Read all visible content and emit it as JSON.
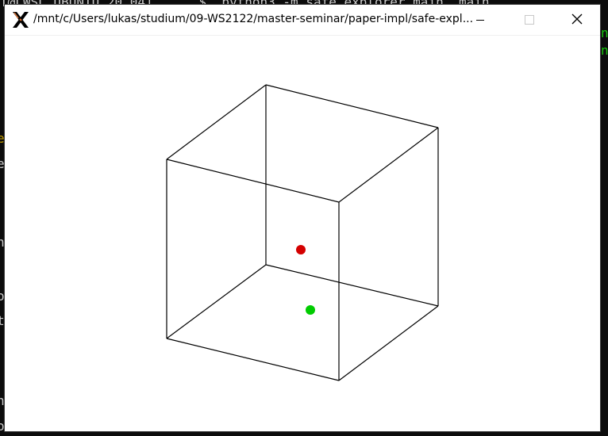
{
  "window": {
    "title": "/mnt/c/Users/lukas/studium/09-WS2122/master-seminar/paper-impl/safe-expl..."
  },
  "titlebar_buttons": {
    "minimize_icon": "minimize-icon",
    "maximize_icon": "maximize-icon",
    "close_icon": "close-icon"
  },
  "app_icon": "x11-icon",
  "background_terminal": {
    "top_text": "T@LWSL UBUNTU 20.04]      $  python3 -m safe_explorer.main  main",
    "right_fragments": [
      "ni",
      "ni"
    ],
    "left_fragments": [
      "e",
      "e_",
      "h",
      "o",
      "t:",
      "h",
      "o:"
    ]
  },
  "scene": {
    "description_colors": {
      "edge": "#000000",
      "red_point": "#d40000",
      "green_point": "#00cc00"
    },
    "points": [
      {
        "name": "red-point",
        "color": "#d40000"
      },
      {
        "name": "green-point",
        "color": "#00cc00"
      }
    ]
  },
  "colors": {
    "window_bg": "#ffffff",
    "desktop_bg": "#0c0c0c"
  }
}
